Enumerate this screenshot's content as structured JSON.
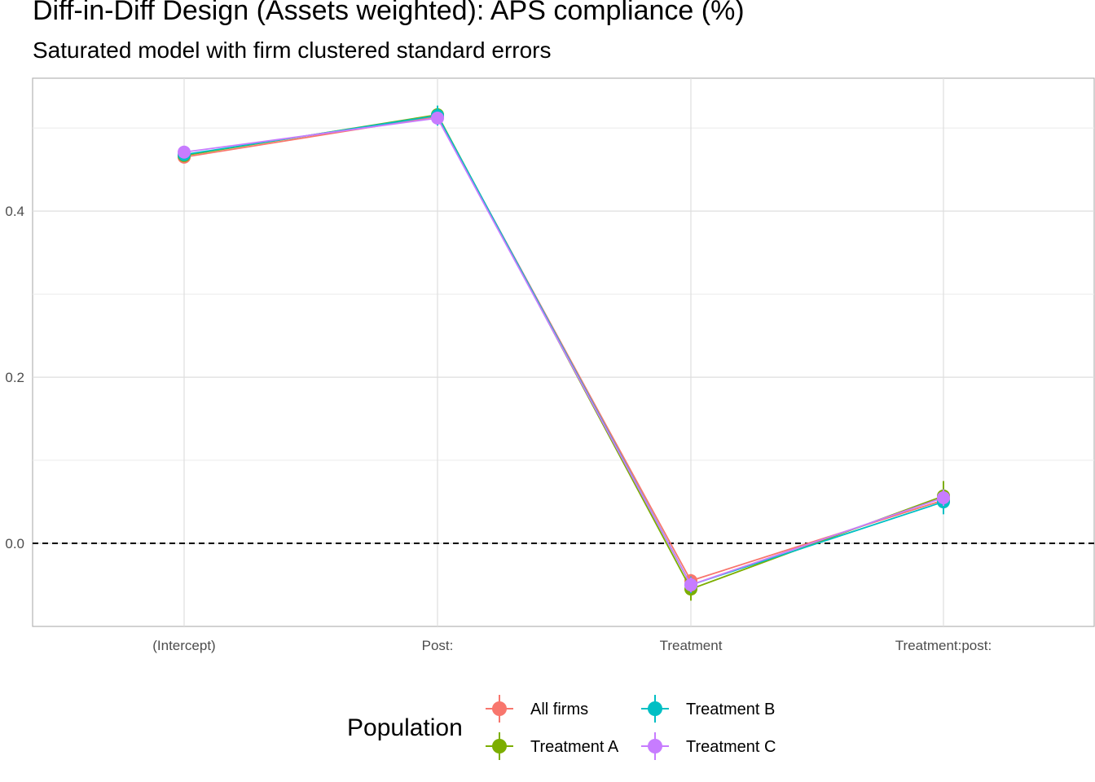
{
  "chart_data": {
    "type": "line",
    "title": "Diff-in-Diff Design (Assets weighted): APS compliance (%)",
    "subtitle": "Saturated model with firm clustered standard errors",
    "xlabel": "",
    "ylabel": "",
    "categories": [
      "(Intercept)",
      "Post:",
      "Treatment",
      "Treatment:post:"
    ],
    "ylim": [
      -0.1,
      0.56
    ],
    "yticks": [
      0.0,
      0.2,
      0.4
    ],
    "ytick_labels": [
      "0.0",
      "0.2",
      "0.4"
    ],
    "reference_line": {
      "y": 0.0,
      "style": "dashed"
    },
    "grid": true,
    "legend": {
      "title": "Population",
      "position": "bottom"
    },
    "series": [
      {
        "name": "All firms",
        "color": "#F8766D",
        "values": [
          0.465,
          0.514,
          -0.045,
          0.052
        ],
        "error": [
          0.004,
          0.006,
          0.008,
          0.008
        ]
      },
      {
        "name": "Treatment A",
        "color": "#7CAE00",
        "values": [
          0.467,
          0.516,
          -0.055,
          0.057
        ],
        "error": [
          0.004,
          0.01,
          0.014,
          0.018
        ]
      },
      {
        "name": "Treatment B",
        "color": "#00BFC4",
        "values": [
          0.468,
          0.515,
          -0.05,
          0.05
        ],
        "error": [
          0.004,
          0.012,
          0.01,
          0.015
        ]
      },
      {
        "name": "Treatment C",
        "color": "#C77CFF",
        "values": [
          0.471,
          0.512,
          -0.05,
          0.055
        ],
        "error": [
          0.004,
          0.006,
          0.009,
          0.01
        ]
      }
    ]
  }
}
